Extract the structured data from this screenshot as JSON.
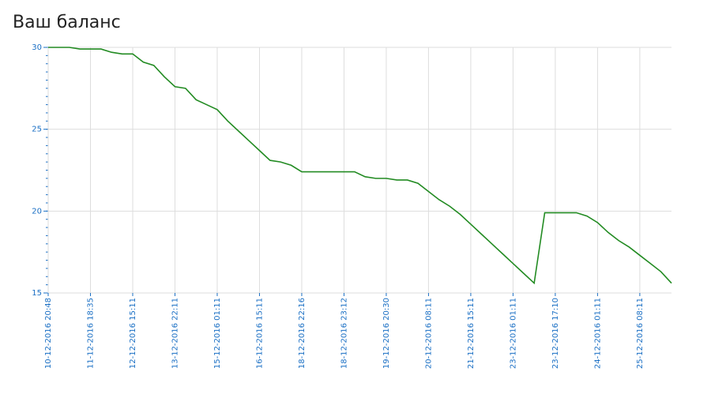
{
  "chart_data": {
    "type": "line",
    "title": "Ваш баланс",
    "categories": [
      "10-12-2016 20:48",
      null,
      null,
      null,
      "11-12-2016 18:35",
      null,
      null,
      null,
      "12-12-2016 15:11",
      null,
      null,
      null,
      "13-12-2016 22:11",
      null,
      null,
      null,
      "15-12-2016 01:11",
      null,
      null,
      null,
      "16-12-2016 15:11",
      null,
      null,
      null,
      "18-12-2016 22:16",
      null,
      null,
      null,
      "18-12-2016 23:12",
      null,
      null,
      null,
      "19-12-2016 20:30",
      null,
      null,
      null,
      "20-12-2016 08:11",
      null,
      null,
      null,
      "21-12-2016 15:11",
      null,
      null,
      null,
      "23-12-2016 01:11",
      null,
      null,
      null,
      "23-12-2016 17:10",
      null,
      null,
      null,
      "24-12-2016 01:11",
      null,
      null,
      null,
      "25-12-2016 08:11",
      null,
      null,
      null
    ],
    "series": [
      {
        "color": "#228b22",
        "values": [
          30,
          30,
          30,
          29.9,
          29.9,
          29.9,
          29.7,
          29.6,
          29.6,
          29.1,
          28.9,
          28.2,
          27.6,
          27.5,
          26.8,
          26.5,
          26.2,
          25.5,
          24.9,
          24.3,
          23.7,
          23.1,
          23.0,
          22.8,
          22.4,
          22.4,
          22.4,
          22.4,
          22.4,
          22.4,
          22.1,
          22.0,
          22.0,
          21.9,
          21.9,
          21.7,
          21.2,
          20.7,
          20.3,
          19.8,
          19.2,
          18.6,
          18.0,
          17.4,
          16.8,
          16.2,
          15.6,
          19.9,
          19.9,
          19.9,
          19.9,
          19.7,
          19.3,
          18.7,
          18.2,
          17.8,
          17.3,
          16.8,
          16.3,
          15.6
        ]
      }
    ],
    "ylim": [
      15,
      30
    ],
    "yticks": [
      15,
      20,
      25,
      30
    ],
    "grid": true
  }
}
